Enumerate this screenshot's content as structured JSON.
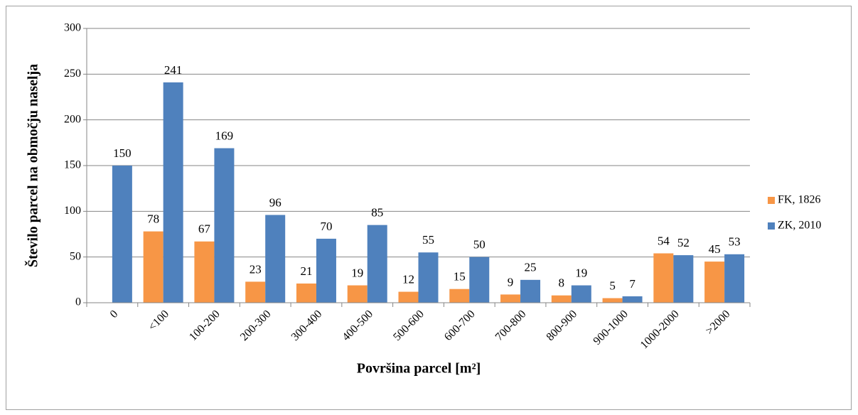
{
  "chart_data": {
    "type": "bar",
    "y_label": "Število parcel na območju naselja",
    "x_label": "Površina parcel [m²]",
    "categories": [
      "0",
      "<100",
      "100-200",
      "200-300",
      "300-400",
      "400-500",
      "500-600",
      "600-700",
      "700-800",
      "800-900",
      "900-1000",
      "1000-2000",
      ">2000"
    ],
    "series": [
      {
        "name": "FK, 1826",
        "color": "#f79646",
        "values": [
          null,
          78,
          67,
          23,
          21,
          19,
          12,
          15,
          9,
          8,
          5,
          54,
          45
        ]
      },
      {
        "name": "ZK, 2010",
        "color": "#4f81bd",
        "values": [
          150,
          241,
          169,
          96,
          70,
          85,
          55,
          50,
          25,
          19,
          7,
          52,
          53
        ]
      }
    ],
    "ylim": [
      0,
      300
    ],
    "yticks": [
      0,
      50,
      100,
      150,
      200,
      250,
      300
    ],
    "grid": true,
    "legend": "right"
  }
}
